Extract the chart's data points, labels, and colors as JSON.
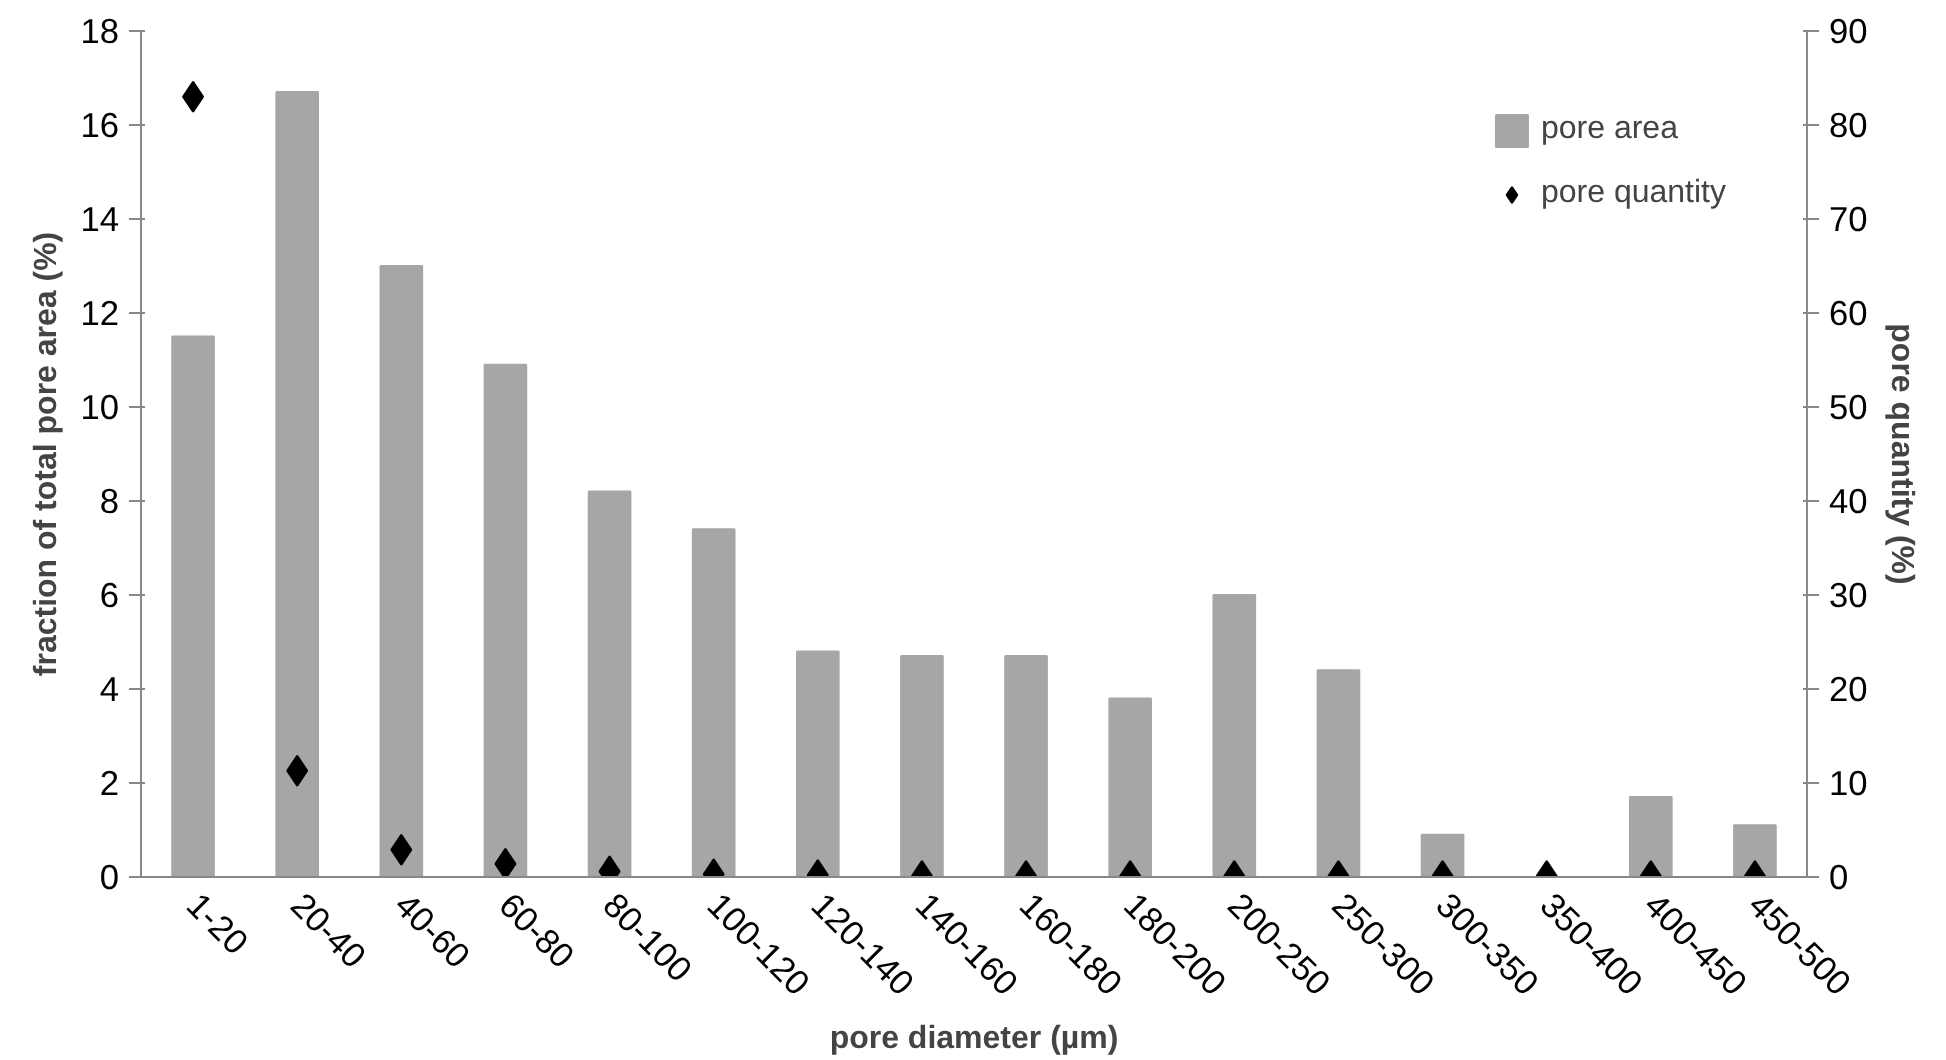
{
  "chart_data": {
    "type": "bar",
    "xlabel": "pore diameter (µm)",
    "ylabel": "fraction of total pore area (%)",
    "y2label": "pore quantity (%)",
    "categories": [
      "1-20",
      "20-40",
      "40-60",
      "60-80",
      "80-100",
      "100-120",
      "120-140",
      "140-160",
      "160-180",
      "180-200",
      "200-250",
      "250-300",
      "300-350",
      "350-400",
      "400-450",
      "450-500"
    ],
    "series": [
      {
        "name": "pore area",
        "color": "#a6a6a6",
        "values": [
          11.5,
          16.7,
          13.0,
          10.9,
          8.2,
          7.4,
          4.8,
          4.7,
          4.7,
          3.8,
          6.0,
          4.4,
          0.9,
          0,
          1.7,
          1.1
        ]
      },
      {
        "name": "pore quantity",
        "type": "scatter",
        "axis": "y2",
        "color": "#000000",
        "marker": "diamond",
        "values": [
          83,
          11.3,
          2.9,
          1.4,
          0.6,
          0.3,
          0.2,
          0.1,
          0.1,
          0.1,
          0.1,
          0.1,
          0.1,
          0.1,
          0.1,
          0.1
        ]
      }
    ],
    "ylim": [
      0,
      18
    ],
    "yticks": [
      0,
      2,
      4,
      6,
      8,
      10,
      12,
      14,
      16,
      18
    ],
    "y2lim": [
      0,
      90
    ],
    "y2ticks": [
      0,
      10,
      20,
      30,
      40,
      50,
      60,
      70,
      80,
      90
    ],
    "grid": false,
    "legend": "top right"
  }
}
